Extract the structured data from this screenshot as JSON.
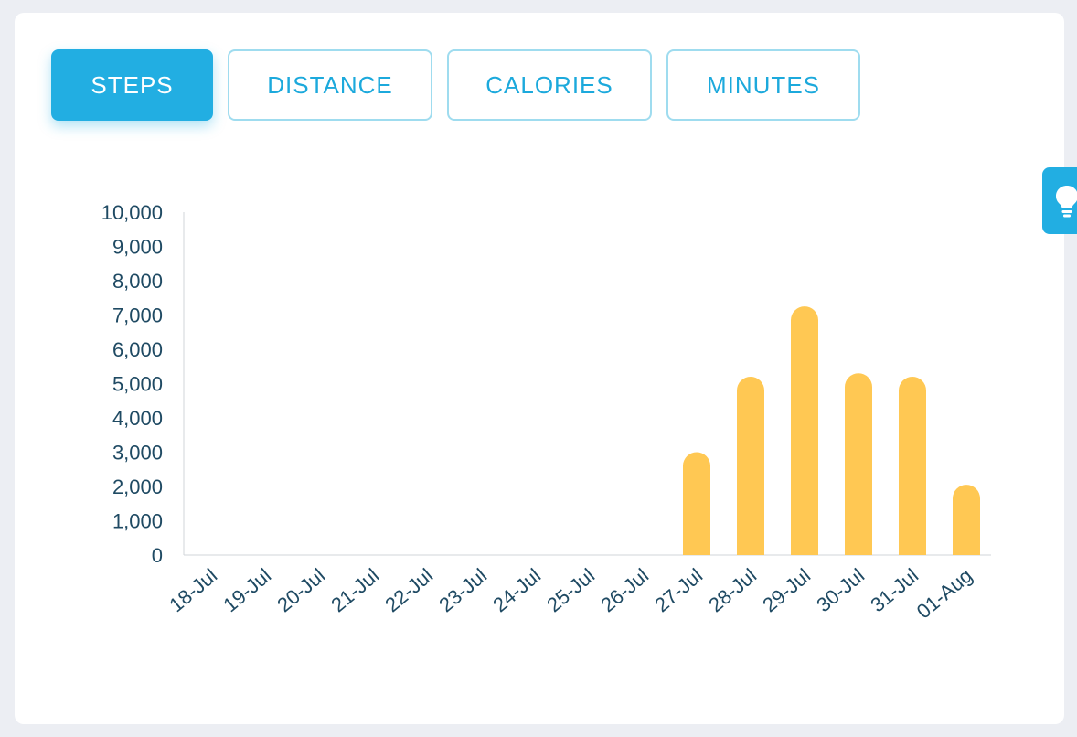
{
  "tabs": [
    {
      "label": "STEPS",
      "active": true
    },
    {
      "label": "DISTANCE",
      "active": false
    },
    {
      "label": "CALORIES",
      "active": false
    },
    {
      "label": "MINUTES",
      "active": false
    }
  ],
  "tip_button": {
    "icon": "lightbulb-icon"
  },
  "colors": {
    "accent": "#22aee2",
    "bar": "#ffc853",
    "axis_text": "#1f4a63"
  },
  "chart_data": {
    "type": "bar",
    "categories": [
      "18-Jul",
      "19-Jul",
      "20-Jul",
      "21-Jul",
      "22-Jul",
      "23-Jul",
      "24-Jul",
      "25-Jul",
      "26-Jul",
      "27-Jul",
      "28-Jul",
      "29-Jul",
      "30-Jul",
      "31-Jul",
      "01-Aug"
    ],
    "values": [
      0,
      0,
      0,
      0,
      0,
      0,
      0,
      0,
      0,
      3000,
      5200,
      7250,
      5300,
      5200,
      2050
    ],
    "ylim": [
      0,
      10000
    ],
    "yticks": [
      "0",
      "1,000",
      "2,000",
      "3,000",
      "4,000",
      "5,000",
      "6,000",
      "7,000",
      "8,000",
      "9,000",
      "10,000"
    ],
    "title": "",
    "xlabel": "",
    "ylabel": "",
    "grid": false,
    "legend": "none"
  }
}
